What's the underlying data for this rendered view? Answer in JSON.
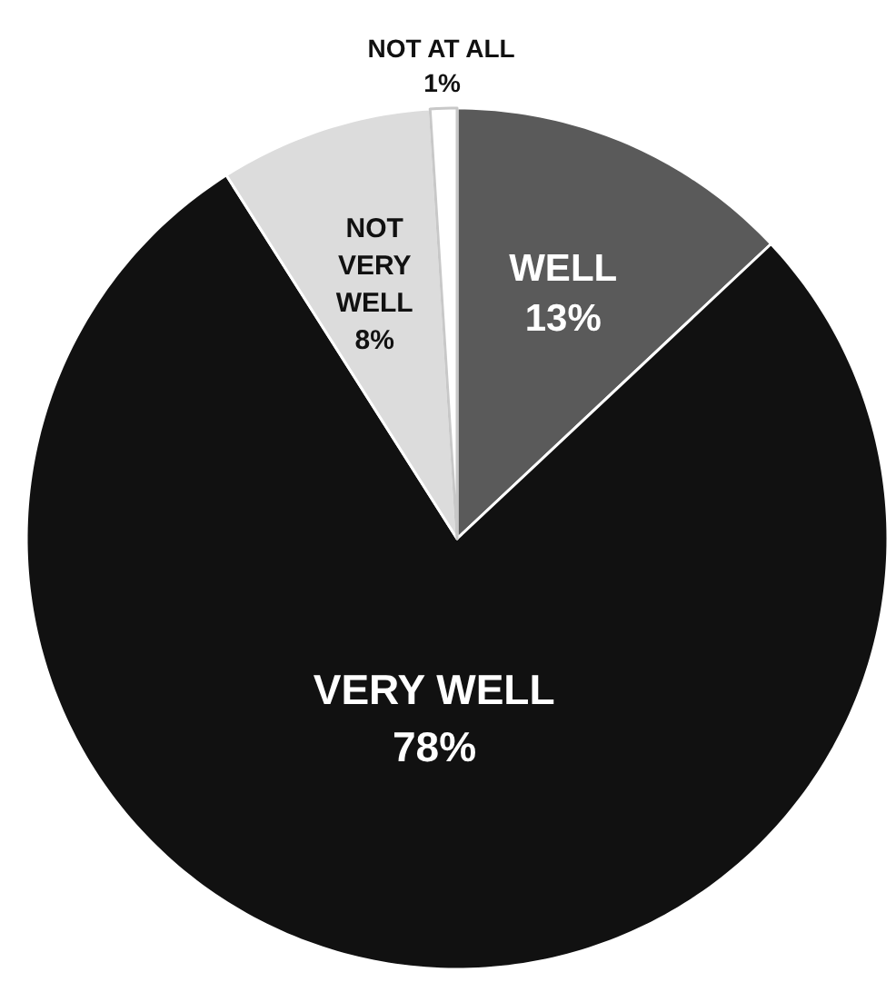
{
  "chart_data": {
    "type": "pie",
    "categories": [
      "WELL",
      "VERY WELL",
      "NOT VERY WELL",
      "NOT AT ALL"
    ],
    "values": [
      13,
      78,
      8,
      1
    ],
    "value_labels": [
      "13%",
      "78%",
      "8%",
      "1%"
    ],
    "colors": [
      "#5a5a5a",
      "#111111",
      "#dcdcdc",
      "#ffffff"
    ]
  }
}
